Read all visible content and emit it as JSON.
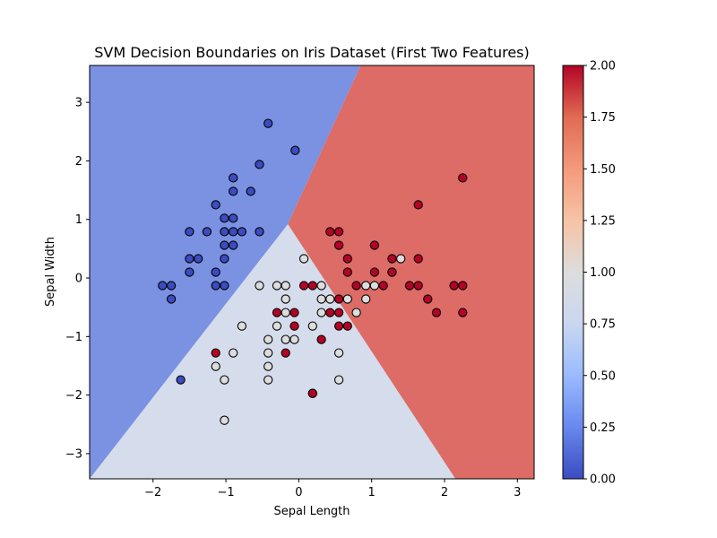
{
  "chart_data": {
    "type": "scatter",
    "title": "SVM Decision Boundaries on Iris Dataset (First Two Features)",
    "xlabel": "Sepal Length",
    "ylabel": "Sepal Width",
    "xlim": [
      -2.87,
      3.23
    ],
    "ylim": [
      -3.43,
      3.63
    ],
    "xticks": [
      "−2",
      "−1",
      "0",
      "1",
      "2",
      "3"
    ],
    "xtick_values": [
      -2,
      -1,
      0,
      1,
      2,
      3
    ],
    "yticks": [
      "−3",
      "−2",
      "−1",
      "0",
      "1",
      "2",
      "3"
    ],
    "ytick_values": [
      -3,
      -2,
      -1,
      0,
      1,
      2,
      3
    ],
    "regions": {
      "class0_color": "#7b91e2",
      "class1_color": "#d5dcec",
      "class2_color": "#dd6b66",
      "vertex": [
        -0.15,
        0.92
      ],
      "boundary01_end": [
        -2.87,
        -3.43
      ],
      "boundary02_end": [
        0.85,
        3.63
      ],
      "boundary12_end": [
        2.15,
        -3.43
      ]
    },
    "colorbar": {
      "min": 0.0,
      "max": 2.0,
      "ticks": [
        "0.00",
        "0.25",
        "0.50",
        "0.75",
        "1.00",
        "1.25",
        "1.50",
        "1.75",
        "2.00"
      ],
      "tick_values": [
        0,
        0.25,
        0.5,
        0.75,
        1.0,
        1.25,
        1.5,
        1.75,
        2.0
      ],
      "colormap": "coolwarm",
      "stops": [
        "#3b4cc0",
        "#6788ee",
        "#9abbff",
        "#c9d7f0",
        "#dddddd",
        "#f6c3a6",
        "#f49a7b",
        "#e06b53",
        "#b40426"
      ]
    },
    "series": [
      {
        "color": "#3b4cc0",
        "points": [
          [
            -0.42,
            2.64
          ],
          [
            -0.05,
            2.18
          ],
          [
            -0.54,
            1.94
          ],
          [
            -0.9,
            1.71
          ],
          [
            -0.9,
            1.48
          ],
          [
            -0.66,
            1.48
          ],
          [
            -1.14,
            1.25
          ],
          [
            -1.02,
            1.02
          ],
          [
            -0.9,
            1.02
          ],
          [
            -1.5,
            0.79
          ],
          [
            -1.26,
            0.79
          ],
          [
            -1.02,
            0.79
          ],
          [
            -0.9,
            0.79
          ],
          [
            -0.78,
            0.79
          ],
          [
            -0.54,
            0.79
          ],
          [
            -1.02,
            0.56
          ],
          [
            -0.9,
            0.56
          ],
          [
            -1.5,
            0.33
          ],
          [
            -1.38,
            0.33
          ],
          [
            -1.02,
            0.33
          ],
          [
            -1.5,
            0.1
          ],
          [
            -1.14,
            0.1
          ],
          [
            -1.87,
            -0.13
          ],
          [
            -1.75,
            -0.13
          ],
          [
            -1.14,
            -0.13
          ],
          [
            -1.02,
            -0.13
          ],
          [
            -1.75,
            -0.36
          ],
          [
            -1.62,
            -1.74
          ]
        ]
      },
      {
        "color": "#dddddd",
        "points": [
          [
            0.07,
            0.33
          ],
          [
            1.28,
            0.1
          ],
          [
            1.4,
            0.33
          ],
          [
            0.92,
            -0.13
          ],
          [
            1.04,
            -0.13
          ],
          [
            -0.54,
            -0.13
          ],
          [
            -0.3,
            -0.13
          ],
          [
            -0.18,
            -0.13
          ],
          [
            0.31,
            -0.13
          ],
          [
            -0.18,
            -0.36
          ],
          [
            0.31,
            -0.36
          ],
          [
            0.43,
            -0.36
          ],
          [
            0.67,
            -0.36
          ],
          [
            0.92,
            -0.36
          ],
          [
            -0.18,
            -0.59
          ],
          [
            0.31,
            -0.59
          ],
          [
            0.79,
            -0.59
          ],
          [
            -0.78,
            -0.82
          ],
          [
            -0.3,
            -0.82
          ],
          [
            0.19,
            -0.82
          ],
          [
            -0.42,
            -1.05
          ],
          [
            -0.18,
            -1.05
          ],
          [
            -0.06,
            -1.05
          ],
          [
            -0.9,
            -1.28
          ],
          [
            -0.42,
            -1.28
          ],
          [
            0.55,
            -1.28
          ],
          [
            -1.14,
            -1.51
          ],
          [
            -0.42,
            -1.51
          ],
          [
            -1.02,
            -1.74
          ],
          [
            -0.42,
            -1.74
          ],
          [
            0.55,
            -1.74
          ],
          [
            -1.02,
            -2.43
          ],
          [
            0.19,
            -1.97
          ]
        ]
      },
      {
        "color": "#b40426",
        "points": [
          [
            2.25,
            1.71
          ],
          [
            1.64,
            1.25
          ],
          [
            0.43,
            0.79
          ],
          [
            0.55,
            0.79
          ],
          [
            0.55,
            0.56
          ],
          [
            1.04,
            0.56
          ],
          [
            0.67,
            0.33
          ],
          [
            1.28,
            0.33
          ],
          [
            1.64,
            0.33
          ],
          [
            0.67,
            0.1
          ],
          [
            1.04,
            0.1
          ],
          [
            1.28,
            0.1
          ],
          [
            0.07,
            -0.13
          ],
          [
            0.19,
            -0.13
          ],
          [
            0.79,
            -0.13
          ],
          [
            1.16,
            -0.13
          ],
          [
            1.52,
            -0.13
          ],
          [
            1.64,
            -0.13
          ],
          [
            2.13,
            -0.13
          ],
          [
            2.25,
            -0.13
          ],
          [
            0.55,
            -0.36
          ],
          [
            1.77,
            -0.36
          ],
          [
            -0.3,
            -0.59
          ],
          [
            -0.06,
            -0.59
          ],
          [
            0.43,
            -0.59
          ],
          [
            0.55,
            -0.59
          ],
          [
            1.89,
            -0.59
          ],
          [
            2.25,
            -0.59
          ],
          [
            -0.06,
            -0.82
          ],
          [
            0.55,
            -0.82
          ],
          [
            0.67,
            -0.82
          ],
          [
            0.31,
            -1.05
          ],
          [
            -1.14,
            -1.28
          ],
          [
            -0.18,
            -1.28
          ],
          [
            0.19,
            -1.97
          ]
        ]
      }
    ]
  }
}
